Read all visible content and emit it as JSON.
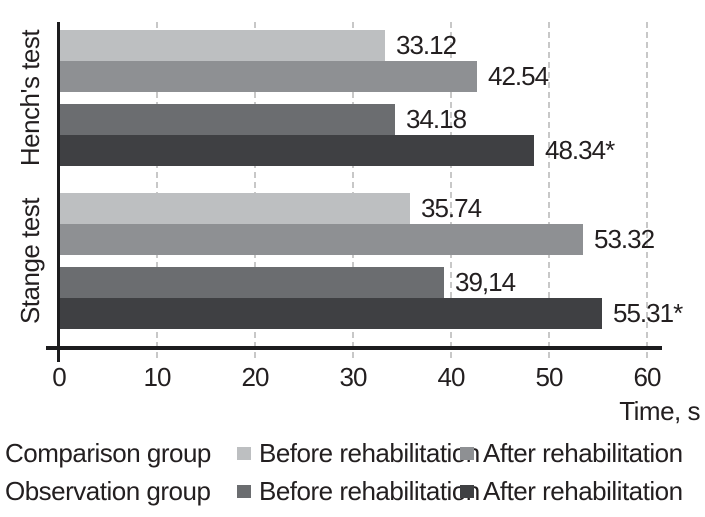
{
  "chart_data": {
    "type": "bar",
    "orientation": "horizontal",
    "title": "",
    "categories": [
      "Hench's test",
      "Stange test"
    ],
    "series": [
      {
        "group": "Comparison group",
        "phase": "Before rehabilitation",
        "color": "#bdbfc1",
        "values": [
          33.12,
          35.74
        ],
        "value_labels": [
          "33.12",
          "35.74"
        ]
      },
      {
        "group": "Comparison group",
        "phase": "After rehabilitation",
        "color": "#8e9093",
        "values": [
          42.54,
          53.32
        ],
        "value_labels": [
          "42.54",
          "53.32"
        ]
      },
      {
        "group": "Observation group",
        "phase": "Before rehabilitation",
        "color": "#6b6d70",
        "values": [
          34.18,
          39.14
        ],
        "value_labels": [
          "34.18",
          "39,14"
        ]
      },
      {
        "group": "Observation group",
        "phase": "After rehabilitation",
        "color": "#3f4043",
        "values": [
          48.34,
          55.31
        ],
        "value_labels": [
          "48.34*",
          "55.31*"
        ]
      }
    ],
    "x_axis": {
      "title": "Time, s",
      "range": [
        0,
        60
      ],
      "ticks": [
        "0",
        "10",
        "20",
        "30",
        "40",
        "50",
        "60"
      ],
      "grid": "dashed-vertical"
    },
    "legend": {
      "position": "bottom",
      "rows": [
        {
          "group_label": "Comparison group",
          "items": [
            {
              "label": "Before rehabilitation",
              "color": "#bdbfc1"
            },
            {
              "label": "After rehabilitation",
              "color": "#8e9093"
            }
          ]
        },
        {
          "group_label": "Observation group",
          "items": [
            {
              "label": "Before rehabilitation",
              "color": "#6b6d70"
            },
            {
              "label": "After rehabilitation",
              "color": "#3f4043"
            }
          ]
        }
      ]
    },
    "colors": {
      "text": "#231f20",
      "axis": "#1c1c1e",
      "gridline": "#c8c8c8",
      "background": "#ffffff"
    }
  }
}
